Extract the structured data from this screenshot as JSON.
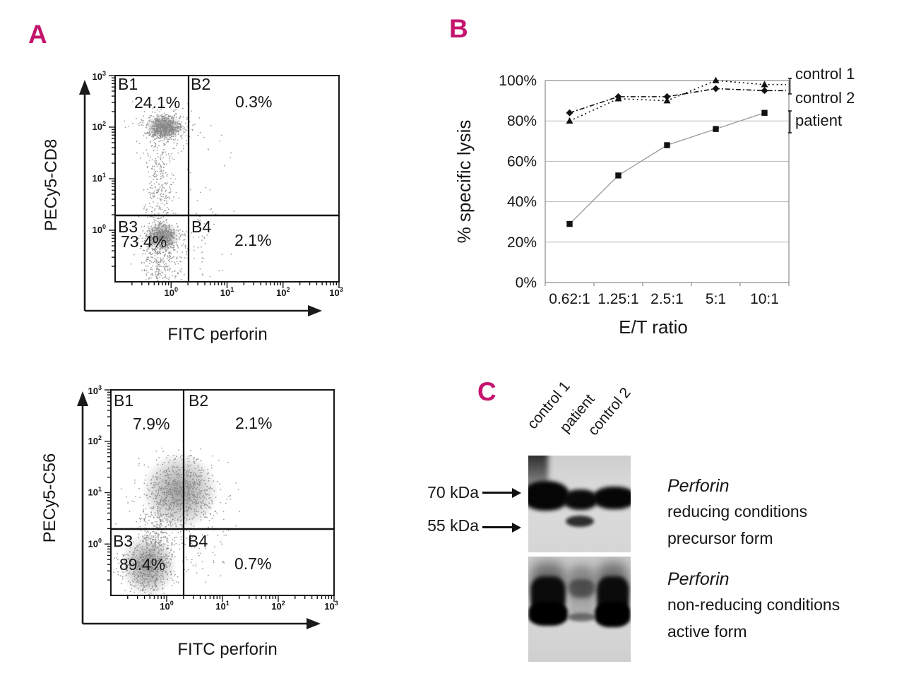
{
  "accent_color": "#c4156e",
  "panel_a": {
    "label": "A",
    "plots": [
      {
        "y_axis_label": "PECy5-CD8",
        "x_axis_label": "FITC perforin",
        "quadrants": {
          "b1": {
            "name": "B1",
            "value": "24.1%"
          },
          "b2": {
            "name": "B2",
            "value": "0.3%"
          },
          "b3": {
            "name": "B3",
            "value": "73.4%"
          },
          "b4": {
            "name": "B4",
            "value": "2.1%"
          }
        }
      },
      {
        "y_axis_label": "PECy5-C56",
        "x_axis_label": "FITC perforin",
        "quadrants": {
          "b1": {
            "name": "B1",
            "value": "7.9%"
          },
          "b2": {
            "name": "B2",
            "value": "2.1%"
          },
          "b3": {
            "name": "B3",
            "value": "89.4%"
          },
          "b4": {
            "name": "B4",
            "value": "0.7%"
          }
        }
      }
    ]
  },
  "panel_b": {
    "label": "B",
    "y_axis_label": "% specific lysis",
    "x_axis_label": "E/T ratio"
  },
  "panel_c": {
    "label": "C",
    "lane_labels": [
      "control 1",
      "patient",
      "control 2"
    ],
    "weight_markers": [
      "70 kDa",
      "55 kDa"
    ],
    "captions": [
      {
        "title": "Perforin",
        "line1": "reducing conditions",
        "line2": "precursor form"
      },
      {
        "title": "Perforin",
        "line1": "non-reducing conditions",
        "line2": "active form"
      }
    ]
  },
  "chart_data": [
    {
      "id": "flow_cd8",
      "type": "scatter",
      "subtype": "flow-cytometry-dot-plot",
      "xlabel": "FITC perforin",
      "ylabel": "PECy5-CD8",
      "x_scale": "log",
      "y_scale": "log",
      "x_range_log10": [
        -1,
        3
      ],
      "y_range_log10": [
        -1,
        3
      ],
      "x_tick_exponents": [
        0,
        1,
        2,
        3
      ],
      "y_tick_exponents": [
        0,
        1,
        2,
        3
      ],
      "quadrant_divider_log10": {
        "x": 0.3,
        "y": 0.29
      },
      "quadrant_percentages": {
        "B1": 24.1,
        "B2": 0.3,
        "B3": 73.4,
        "B4": 2.1
      },
      "clusters": [
        {
          "cx": -0.12,
          "cy": 2.0,
          "sx": 0.15,
          "sy": 0.11,
          "n": 520,
          "core": true
        },
        {
          "cx": -0.15,
          "cy": 1.95,
          "sx": 0.3,
          "sy": 0.25,
          "n": 170
        },
        {
          "cx": -0.2,
          "cy": 0.9,
          "sx": 0.12,
          "sy": 0.55,
          "n": 270
        },
        {
          "cx": -0.16,
          "cy": -0.12,
          "sx": 0.14,
          "sy": 0.13,
          "n": 430,
          "core": true
        },
        {
          "cx": -0.2,
          "cy": -0.55,
          "sx": 0.18,
          "sy": 0.3,
          "n": 330
        },
        {
          "cx": 0.45,
          "cy": -0.3,
          "sx": 0.22,
          "sy": 0.35,
          "n": 60
        },
        {
          "cx": 0.6,
          "cy": 0.9,
          "sx": 0.35,
          "sy": 0.6,
          "n": 30
        }
      ]
    },
    {
      "id": "flow_c56",
      "type": "scatter",
      "subtype": "flow-cytometry-dot-plot",
      "xlabel": "FITC perforin",
      "ylabel": "PECy5-C56",
      "x_scale": "log",
      "y_scale": "log",
      "x_range_log10": [
        -1,
        3
      ],
      "y_range_log10": [
        -1,
        3
      ],
      "x_tick_exponents": [
        0,
        1,
        2,
        3
      ],
      "y_tick_exponents": [
        0,
        1,
        2,
        3
      ],
      "quadrant_divider_log10": {
        "x": 0.3,
        "y": 0.3
      },
      "quadrant_percentages": {
        "B1": 7.9,
        "B2": 2.1,
        "B3": 89.4,
        "B4": 0.7
      },
      "clusters": [
        {
          "cx": 0.24,
          "cy": 1.03,
          "sx": 0.3,
          "sy": 0.33,
          "n": 730,
          "core": true
        },
        {
          "cx": -0.33,
          "cy": -0.41,
          "sx": 0.22,
          "sy": 0.27,
          "n": 640,
          "core": true
        },
        {
          "cx": -0.15,
          "cy": 0.25,
          "sx": 0.2,
          "sy": 0.33,
          "n": 270
        },
        {
          "cx": 0.5,
          "cy": -0.25,
          "sx": 0.28,
          "sy": 0.3,
          "n": 45
        },
        {
          "cx": 0.62,
          "cy": 0.55,
          "sx": 0.25,
          "sy": 0.35,
          "n": 55
        }
      ]
    },
    {
      "id": "specific_lysis",
      "type": "line",
      "categories": [
        "0.62:1",
        "1.25:1",
        "2.5:1",
        "5:1",
        "10:1"
      ],
      "series": [
        {
          "name": "control 1",
          "marker": "triangle",
          "line": "dotted",
          "values": [
            80,
            91,
            90,
            100,
            98
          ]
        },
        {
          "name": "control 2",
          "marker": "diamond",
          "line": "dash-dot",
          "values": [
            84,
            92,
            92,
            96,
            95
          ]
        },
        {
          "name": "patient",
          "marker": "square",
          "line": "solid",
          "values": [
            29,
            53,
            68,
            76,
            84
          ]
        }
      ],
      "xlabel": "E/T ratio",
      "ylabel": "% specific lysis",
      "ylim": [
        0,
        100
      ],
      "y_tick_labels": [
        "0%",
        "20%",
        "40%",
        "60%",
        "80%",
        "100%"
      ],
      "grid": "horizontal",
      "legend_position": "right"
    }
  ]
}
